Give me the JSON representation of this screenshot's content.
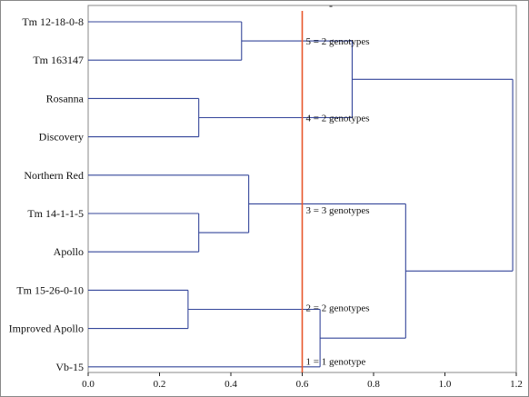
{
  "chart_data": {
    "type": "dendrogram",
    "title": "",
    "xlabel": "",
    "ylabel": "",
    "top_mark": "-",
    "xlim": [
      0,
      1.2
    ],
    "x_ticks": [
      0.0,
      0.2,
      0.4,
      0.6,
      0.8,
      1.0,
      1.2
    ],
    "x_tick_labels": [
      "0.0",
      "0.2",
      "0.4",
      "0.6",
      "0.8",
      "1.0",
      "1.2"
    ],
    "leaves": [
      "Tm 12-18-0-8",
      "Tm 163147",
      "Rosanna",
      "Discovery",
      "Northern Red",
      "Tm 14-1-1-5",
      "Apollo",
      "Tm 15-26-0-10",
      "Improved Apollo",
      "Vb-15"
    ],
    "merges": [
      {
        "a": "L0",
        "b": "L1",
        "height": 0.43
      },
      {
        "a": "L2",
        "b": "L3",
        "height": 0.31
      },
      {
        "a": "L5",
        "b": "L6",
        "height": 0.31
      },
      {
        "a": "L4",
        "b": "M2",
        "height": 0.45
      },
      {
        "a": "L7",
        "b": "L8",
        "height": 0.28
      },
      {
        "a": "M0",
        "b": "M1",
        "height": 0.74
      },
      {
        "a": "M4",
        "b": "L9",
        "height": 0.65
      },
      {
        "a": "M3",
        "b": "M6",
        "height": 0.89
      },
      {
        "a": "M5",
        "b": "M7",
        "height": 1.19
      }
    ],
    "cutoff": 0.6,
    "cluster_labels": [
      {
        "text": "5 = 2 genotypes",
        "leaf_pos": 0.5
      },
      {
        "text": "4 = 2 genotypes",
        "leaf_pos": 2.5
      },
      {
        "text": "3 = 3 genotypes",
        "leaf_pos": 4.9
      },
      {
        "text": "2 = 2 genotypes",
        "leaf_pos": 7.45
      },
      {
        "text": "1 = 1 genotype",
        "leaf_pos": 8.85
      }
    ],
    "grid": false,
    "legend": "none",
    "colors": {
      "tree": "#34469a",
      "cutoff": "#e8562a",
      "axis": "#222222",
      "frame": "#888888"
    }
  }
}
